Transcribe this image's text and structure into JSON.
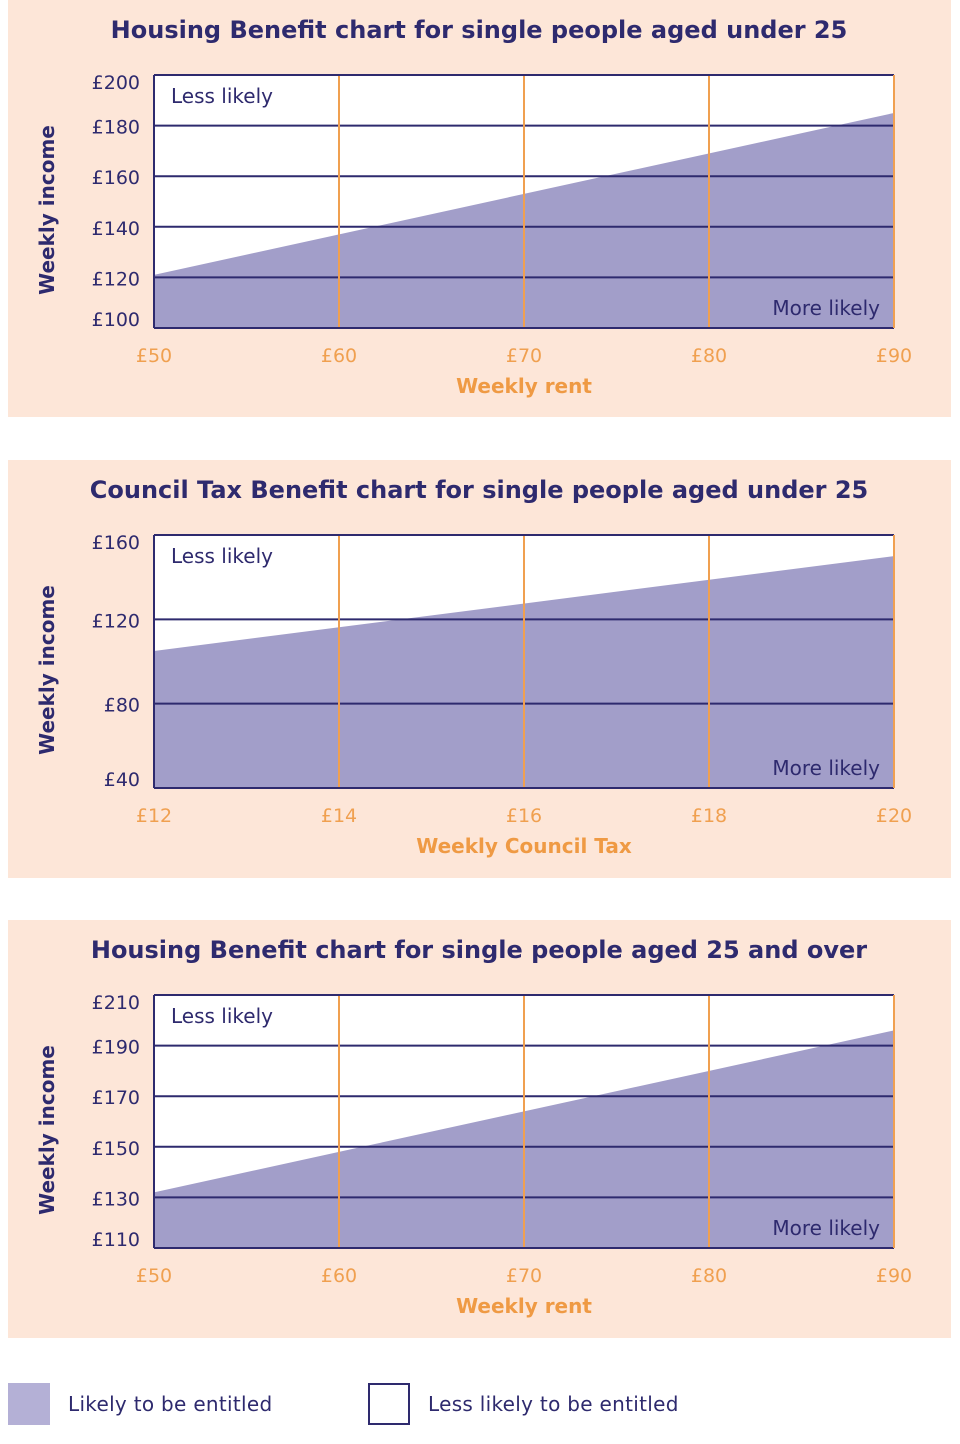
{
  "colors": {
    "panel_bg": "#fde6d8",
    "fill": "#a29ec9",
    "title": "#2e2a6e",
    "grid_h": "#2e2a6e",
    "grid_v": "#f0a050",
    "tick_x": "#f0a050",
    "tick_y": "#2e2a6e",
    "xlabel": "#ef9a44"
  },
  "chart_data": [
    {
      "type": "area",
      "title": "Housing Benefit chart for single people aged under 25",
      "xlabel": "Weekly rent",
      "ylabel": "Weekly income",
      "x_ticks": [
        50,
        60,
        70,
        80,
        90
      ],
      "x_tick_labels": [
        "£50",
        "£60",
        "£70",
        "£80",
        "£90"
      ],
      "y_ticks": [
        100,
        120,
        140,
        160,
        180,
        200
      ],
      "y_tick_labels": [
        "£100",
        "£120",
        "£140",
        "£160",
        "£180",
        "£200"
      ],
      "xlim": [
        50,
        90
      ],
      "ylim": [
        100,
        200
      ],
      "boundary": {
        "x": [
          50,
          90
        ],
        "y": [
          121,
          185
        ]
      },
      "upper_label": "Less likely",
      "lower_label": "More likely",
      "grid": true
    },
    {
      "type": "area",
      "title": "Council Tax Benefit chart for single people aged under 25",
      "xlabel": "Weekly Council Tax",
      "ylabel": "Weekly income",
      "x_ticks": [
        12,
        14,
        16,
        18,
        20
      ],
      "x_tick_labels": [
        "£12",
        "£14",
        "£16",
        "£18",
        "£20"
      ],
      "y_ticks": [
        40,
        80,
        120,
        160
      ],
      "y_tick_labels": [
        "£40",
        "£80",
        "£120",
        "£160"
      ],
      "xlim": [
        12,
        20
      ],
      "ylim": [
        40,
        160
      ],
      "boundary": {
        "x": [
          12,
          20
        ],
        "y": [
          105,
          150
        ]
      },
      "upper_label": "Less likely",
      "lower_label": "More likely",
      "grid": true
    },
    {
      "type": "area",
      "title": "Housing Benefit chart for single people aged 25 and over",
      "xlabel": "Weekly rent",
      "ylabel": "Weekly income",
      "x_ticks": [
        50,
        60,
        70,
        80,
        90
      ],
      "x_tick_labels": [
        "£50",
        "£60",
        "£70",
        "£80",
        "£90"
      ],
      "y_ticks": [
        110,
        130,
        150,
        170,
        190,
        210
      ],
      "y_tick_labels": [
        "£110",
        "£130",
        "£150",
        "£170",
        "£190",
        "£210"
      ],
      "xlim": [
        50,
        90
      ],
      "ylim": [
        110,
        210
      ],
      "boundary": {
        "x": [
          50,
          90
        ],
        "y": [
          132,
          196
        ]
      },
      "upper_label": "Less likely",
      "lower_label": "More likely",
      "grid": true
    }
  ],
  "legend": {
    "likely": "Likely to be entitled",
    "less_likely": "Less likely to be entitled"
  }
}
